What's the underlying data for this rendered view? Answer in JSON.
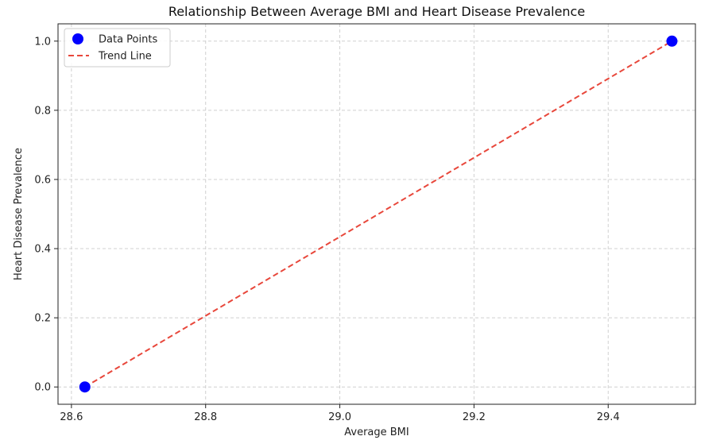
{
  "chart_data": {
    "type": "scatter",
    "title": "Relationship Between Average BMI and Heart Disease Prevalence",
    "xlabel": "Average BMI",
    "ylabel": "Heart Disease Prevalence",
    "xlim": [
      28.58,
      29.53
    ],
    "ylim": [
      -0.05,
      1.05
    ],
    "xticks": [
      28.6,
      28.8,
      29.0,
      29.2,
      29.4
    ],
    "xtick_labels": [
      "28.6",
      "28.8",
      "29.0",
      "29.2",
      "29.4"
    ],
    "yticks": [
      0.0,
      0.2,
      0.4,
      0.6,
      0.8,
      1.0
    ],
    "ytick_labels": [
      "0.0",
      "0.2",
      "0.4",
      "0.6",
      "0.8",
      "1.0"
    ],
    "grid": true,
    "legend_position": "top-left",
    "series": [
      {
        "name": "Data Points",
        "kind": "scatter",
        "color": "#0000ff",
        "x": [
          28.62,
          29.495
        ],
        "y": [
          0.0,
          1.0
        ]
      },
      {
        "name": "Trend Line",
        "kind": "line",
        "style": "dashed",
        "color": "#e8473b",
        "x": [
          28.62,
          29.495
        ],
        "y": [
          0.0,
          1.0
        ]
      }
    ]
  }
}
